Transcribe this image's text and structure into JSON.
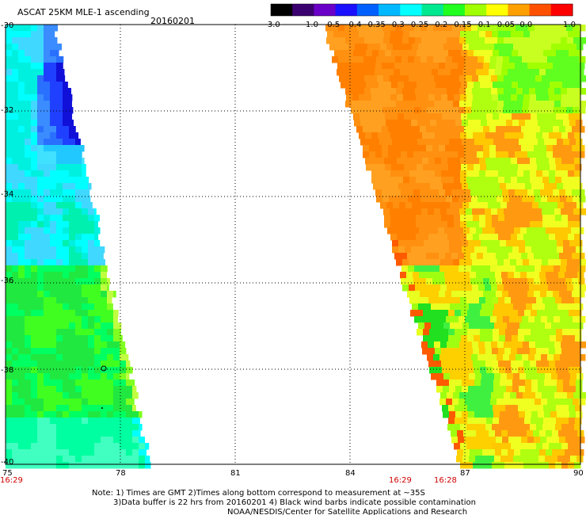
{
  "title": "ASCAT 25KM MLE-1 ascending",
  "date": "20160201",
  "colorbar": {
    "ticks": [
      "-3.0",
      "-1.0",
      "-0.5",
      "-0.4",
      "-0.35",
      "-0.3",
      "-0.25",
      "-0.2",
      "-0.15",
      "-0.1",
      "-0.05",
      "0.0",
      "1.0"
    ],
    "colors": [
      "#000000",
      "#3b0070",
      "#6a00c8",
      "#1a10ff",
      "#0060ff",
      "#00b8ff",
      "#00ffff",
      "#00e890",
      "#20ff20",
      "#a0ff00",
      "#ffff00",
      "#ffa000",
      "#ff5000",
      "#ff0000"
    ]
  },
  "axes": {
    "lon_ticks": [
      "75",
      "78",
      "81",
      "84",
      "87",
      "90"
    ],
    "lat_ticks": [
      "-30",
      "-32",
      "-34",
      "-36",
      "-38",
      "-40"
    ]
  },
  "times": {
    "left": "16:29",
    "mid_a": "16:29",
    "mid_b": "16:28"
  },
  "notes": {
    "line1": "Note: 1) Times are GMT 2)Times along bottom correspond to measurement at ~35S",
    "line2": "3)Data buffer is 22 hrs from 20160201 4) Black wind barbs indicate possible contamination",
    "line3": "NOAA/NESDIS/Center for Satellite Applications and Research"
  }
}
